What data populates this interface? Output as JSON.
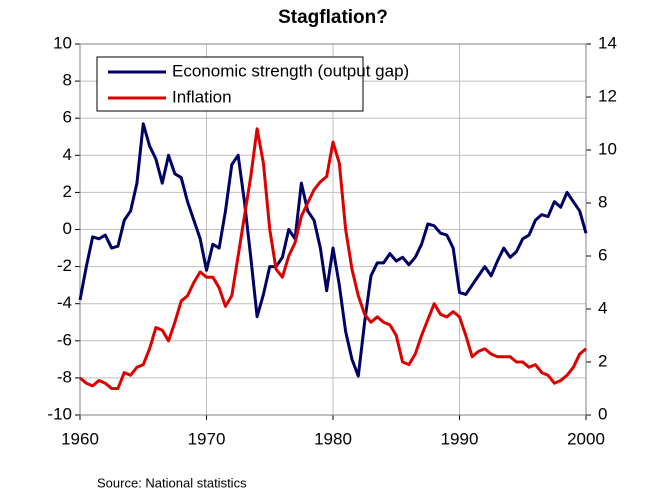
{
  "chart_data": {
    "type": "line",
    "title": "Stagflation?",
    "source": "Source: National statistics",
    "x": [
      1960,
      1960.5,
      1961,
      1961.5,
      1962,
      1962.5,
      1963,
      1963.5,
      1964,
      1964.5,
      1965,
      1965.5,
      1966,
      1966.5,
      1967,
      1967.5,
      1968,
      1968.5,
      1969,
      1969.5,
      1970,
      1970.5,
      1971,
      1971.5,
      1972,
      1972.5,
      1973,
      1973.5,
      1974,
      1974.5,
      1975,
      1975.5,
      1976,
      1976.5,
      1977,
      1977.5,
      1978,
      1978.5,
      1979,
      1979.5,
      1980,
      1980.5,
      1981,
      1981.5,
      1982,
      1982.5,
      1983,
      1983.5,
      1984,
      1984.5,
      1985,
      1985.5,
      1986,
      1986.5,
      1987,
      1987.5,
      1988,
      1988.5,
      1989,
      1989.5,
      1990,
      1990.5,
      1991,
      1991.5,
      1992,
      1992.5,
      1993,
      1993.5,
      1994,
      1994.5,
      1995,
      1995.5,
      1996,
      1996.5,
      1997,
      1997.5,
      1998,
      1998.5,
      1999,
      1999.5,
      2000
    ],
    "series": [
      {
        "name": "Economic strength (output gap)",
        "color": "#000066",
        "axis": "y",
        "values": [
          -3.8,
          -2.0,
          -0.4,
          -0.5,
          -0.3,
          -1.0,
          -0.9,
          0.5,
          1.0,
          2.5,
          5.7,
          4.5,
          3.8,
          2.5,
          4.0,
          3.0,
          2.8,
          1.5,
          0.5,
          -0.5,
          -2.2,
          -0.8,
          -1.0,
          1.0,
          3.5,
          4.0,
          1.5,
          -1.5,
          -4.7,
          -3.5,
          -2.0,
          -2.0,
          -1.5,
          0.0,
          -0.5,
          2.5,
          1.0,
          0.5,
          -1.0,
          -3.3,
          -1.0,
          -3.0,
          -5.5,
          -7.0,
          -7.9,
          -5.0,
          -2.5,
          -1.8,
          -1.8,
          -1.3,
          -1.7,
          -1.5,
          -1.9,
          -1.5,
          -0.8,
          0.3,
          0.2,
          -0.2,
          -0.3,
          -1.0,
          -3.4,
          -3.5,
          -3.0,
          -2.5,
          -2.0,
          -2.5,
          -1.7,
          -1.0,
          -1.5,
          -1.2,
          -0.5,
          -0.3,
          0.5,
          0.8,
          0.7,
          1.5,
          1.2,
          2.0,
          1.5,
          1.0,
          -0.2
        ]
      },
      {
        "name": "Inflation",
        "color": "#dd0000",
        "axis": "y2",
        "values": [
          1.4,
          1.2,
          1.1,
          1.3,
          1.2,
          1.0,
          1.0,
          1.6,
          1.5,
          1.8,
          1.9,
          2.5,
          3.3,
          3.2,
          2.8,
          3.5,
          4.3,
          4.5,
          5.0,
          5.4,
          5.2,
          5.2,
          4.8,
          4.1,
          4.5,
          6.0,
          7.5,
          9.0,
          10.8,
          9.5,
          7.0,
          5.5,
          5.2,
          6.0,
          6.5,
          7.5,
          8.0,
          8.5,
          8.8,
          9.0,
          10.3,
          9.5,
          7.0,
          5.5,
          4.5,
          3.8,
          3.5,
          3.7,
          3.5,
          3.4,
          3.0,
          2.0,
          1.9,
          2.3,
          3.0,
          3.6,
          4.2,
          3.8,
          3.7,
          3.9,
          3.7,
          3.0,
          2.2,
          2.4,
          2.5,
          2.3,
          2.2,
          2.2,
          2.2,
          2.0,
          2.0,
          1.8,
          1.9,
          1.6,
          1.5,
          1.2,
          1.3,
          1.5,
          1.8,
          2.3,
          2.5
        ]
      }
    ],
    "xlim": [
      1960,
      2000
    ],
    "xticks": [
      1960,
      1970,
      1980,
      1990,
      2000
    ],
    "ylim": [
      -10,
      10
    ],
    "yticks": [
      -10,
      -8,
      -6,
      -4,
      -2,
      0,
      2,
      4,
      6,
      8,
      10
    ],
    "y2lim": [
      0,
      14
    ],
    "y2ticks": [
      0,
      2,
      4,
      6,
      8,
      10,
      12,
      14
    ],
    "grid": true,
    "legend": "upper left"
  }
}
